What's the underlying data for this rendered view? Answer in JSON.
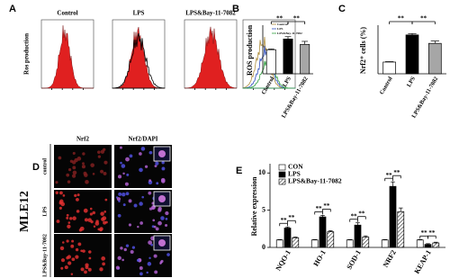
{
  "figure": {
    "panels": [
      "A",
      "B",
      "C",
      "D",
      "E"
    ],
    "panel_a": {
      "y_label": "Ros production",
      "titles": [
        "Control",
        "LPS",
        "LPS&Bay-11-7082"
      ],
      "legend": [
        "Control",
        "LPS",
        "LPS&Bay-11-7082"
      ]
    },
    "panel_d": {
      "cell_line": "MLE12",
      "columns": [
        "Nrf2",
        "Nrf2/DAPI"
      ],
      "rows": [
        "control",
        "LPS",
        "LPS&Bay-11-7082"
      ]
    }
  },
  "chart_data": [
    {
      "type": "bar",
      "y_label": "ROS production",
      "categories": [
        "Control",
        "LPS",
        "LPS&Bay-11-7082"
      ],
      "values": [
        3.6,
        5.2,
        4.4
      ],
      "errors": [
        0.1,
        0.35,
        0.45
      ],
      "colors": [
        "#ffffff",
        "#000000",
        "#a6a6a6"
      ],
      "ylim": [
        0,
        7
      ],
      "annotations": [
        "**",
        "**"
      ]
    },
    {
      "type": "bar",
      "y_label": "Nrf2⁺ cells (%)",
      "categories": [
        "Control",
        "LPS",
        "LPS&Bay-11-7082"
      ],
      "values": [
        0.25,
        0.83,
        0.65
      ],
      "errors": [
        0.01,
        0.03,
        0.05
      ],
      "colors": [
        "#ffffff",
        "#000000",
        "#a6a6a6"
      ],
      "ylim": [
        0,
        1
      ],
      "annotations": [
        "**",
        "**"
      ]
    },
    {
      "type": "bar",
      "y_label": "Relative expression",
      "categories": [
        "NQO-1",
        "HO-1",
        "SOD-1",
        "NRF2",
        "KEAP-1"
      ],
      "series": [
        {
          "name": "CON",
          "color": "#ffffff",
          "values": [
            1,
            1,
            1,
            1,
            1
          ],
          "errors": [
            0.05,
            0.05,
            0.05,
            0.05,
            0.05
          ]
        },
        {
          "name": "LPS",
          "color": "#000000",
          "values": [
            2.6,
            4.1,
            3.0,
            8.2,
            0.4
          ],
          "errors": [
            0.15,
            0.2,
            0.3,
            0.6,
            0.1
          ]
        },
        {
          "name": "LPS&Bay-11-7082",
          "color": "#ffffff",
          "pattern": "hatch",
          "values": [
            1.3,
            2.1,
            1.4,
            4.8,
            0.6
          ],
          "errors": [
            0.1,
            0.15,
            0.15,
            0.5,
            0.1
          ]
        }
      ],
      "ylim": [
        0,
        11
      ],
      "yticks": [
        0,
        5,
        10
      ],
      "annotations": [
        "**",
        "**",
        "**",
        "**",
        "**",
        "**",
        "**",
        "**",
        "**",
        "**"
      ]
    }
  ]
}
